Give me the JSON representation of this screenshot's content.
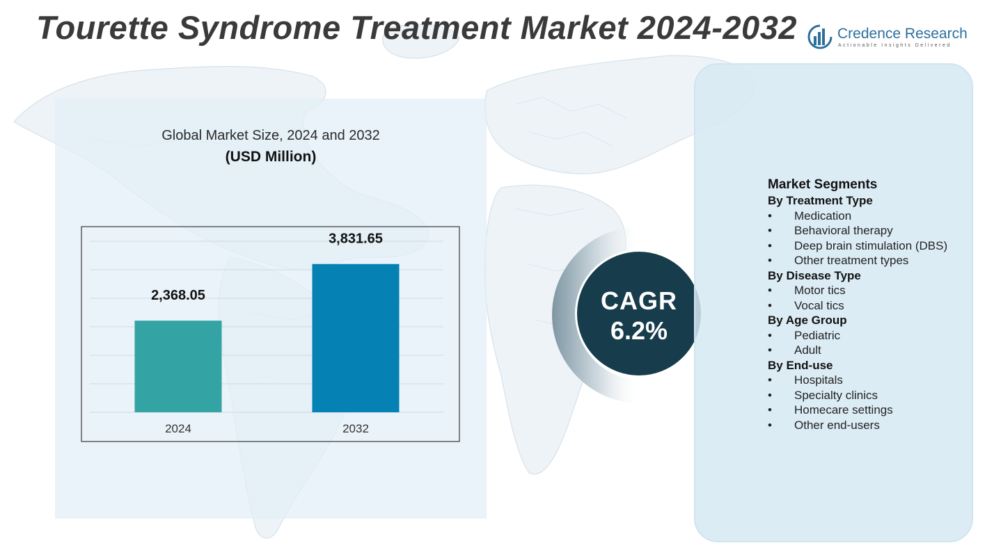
{
  "title": "Tourette Syndrome Treatment Market 2024-2032",
  "logo": {
    "name_part1": "Credence",
    "name_part2": "Research",
    "tagline": "Actionable Insights Delivered",
    "icon": "credence-logo-icon",
    "color": "#2b6f9c"
  },
  "chart_data": {
    "type": "bar",
    "title": "Global Market Size, 2024 and 2032",
    "unit": "(USD Million)",
    "categories": [
      "2024",
      "2032"
    ],
    "values": [
      2368.05,
      3831.65
    ],
    "value_labels": [
      "2,368.05",
      "3,831.65"
    ],
    "colors": [
      "#33a3a4",
      "#0581b4"
    ],
    "grid": true,
    "xlabel": "",
    "ylabel": ""
  },
  "cagr": {
    "label": "CAGR",
    "value": "6.2%",
    "color": "#173c4c"
  },
  "segments": {
    "heading": "Market Segments",
    "bullet": "•",
    "groups": [
      {
        "title": "By Treatment Type",
        "items": [
          "Medication",
          "Behavioral therapy",
          "Deep brain stimulation (DBS)",
          "Other treatment types"
        ]
      },
      {
        "title": "By Disease Type",
        "items": [
          "Motor tics",
          "Vocal tics"
        ]
      },
      {
        "title": "By Age Group",
        "items": [
          "Pediatric",
          "Adult"
        ]
      },
      {
        "title": "By End-use",
        "items": [
          "Hospitals",
          "Specialty clinics",
          "Homecare settings",
          "Other end-users"
        ]
      }
    ]
  }
}
